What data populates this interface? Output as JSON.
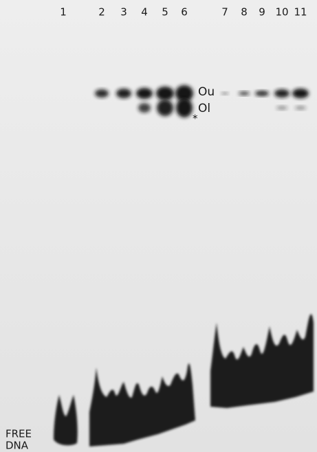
{
  "lanes": [
    "1",
    "2",
    "3",
    "4",
    "5",
    "6",
    "7",
    "8",
    "9",
    "10",
    "11"
  ],
  "bands": [
    {
      "label": "Ou"
    },
    {
      "label": "Ol"
    }
  ],
  "marker": "*",
  "free_dna": [
    "FREE",
    "DNA"
  ]
}
